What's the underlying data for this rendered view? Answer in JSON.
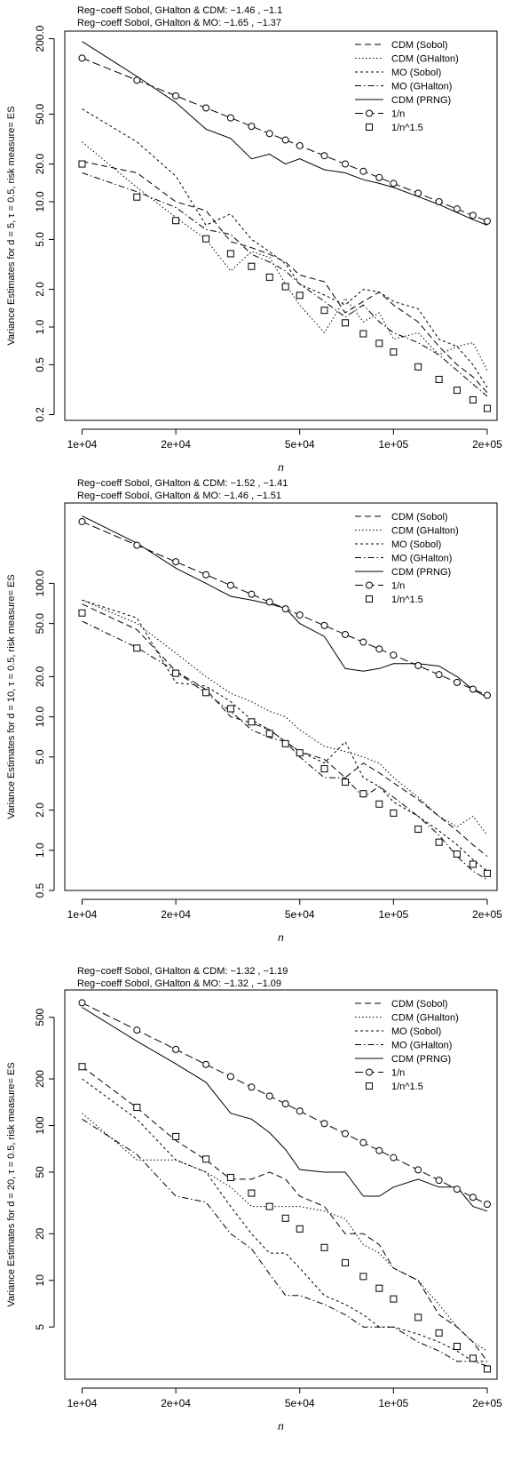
{
  "figure_xlabel": "n",
  "chart_data": [
    {
      "type": "line",
      "title": "Reg−coeff Sobol, GHalton & CDM: −1.46 , −1.1",
      "subtitle": "Reg−coeff Sobol, GHalton & MO: −1.65 , −1.37",
      "xlabel": "n",
      "ylabel": "Variance Estimates for d = 5, τ = 0.5, risk measure= ES",
      "xscale": "log",
      "yscale": "log",
      "xlim": [
        8800,
        215000
      ],
      "ylim": [
        0.18,
        230
      ],
      "xticks": [
        10000,
        20000,
        50000,
        100000,
        200000
      ],
      "xtick_labels": [
        "1e+04",
        "2e+04",
        "5e+04",
        "1e+05",
        "2e+05"
      ],
      "yticks": [
        0.2,
        0.5,
        1,
        2,
        5,
        10,
        20,
        50,
        200
      ],
      "ytick_labels": [
        "0.2",
        "0.5",
        "1.0",
        "2.0",
        "5.0",
        "10.0",
        "20.0",
        "50.0",
        "200.0"
      ],
      "legend_position": "top-right",
      "x": [
        10000,
        15000,
        20000,
        25000,
        30000,
        35000,
        40000,
        45000,
        50000,
        60000,
        70000,
        80000,
        90000,
        100000,
        120000,
        140000,
        160000,
        180000,
        200000
      ],
      "series": [
        {
          "name": "CDM (Sobol)",
          "values": [
            21,
            17,
            10,
            8.5,
            4.8,
            4.3,
            3.8,
            3.3,
            2.6,
            2.3,
            1.3,
            1.6,
            1.9,
            1.5,
            1.1,
            0.7,
            0.5,
            0.4,
            0.3
          ]
        },
        {
          "name": "CDM (GHalton)",
          "values": [
            30,
            13,
            7.5,
            5,
            2.8,
            4,
            3.6,
            2.2,
            1.5,
            0.9,
            1.7,
            1.1,
            1.3,
            0.8,
            0.9,
            0.6,
            0.7,
            0.75,
            0.45
          ]
        },
        {
          "name": "MO (Sobol)",
          "values": [
            55,
            30,
            16,
            6.5,
            8,
            5,
            4,
            3.2,
            2.2,
            1.8,
            1.5,
            2,
            1.9,
            1.6,
            1.4,
            0.8,
            0.7,
            0.5,
            0.33
          ]
        },
        {
          "name": "MO (GHalton)",
          "values": [
            17,
            12,
            9,
            6,
            5.5,
            3.8,
            3.3,
            2.8,
            2.2,
            1.6,
            1.2,
            1.5,
            1.1,
            0.9,
            0.75,
            0.6,
            0.45,
            0.35,
            0.28
          ]
        },
        {
          "name": "CDM (PRNG)",
          "values": [
            190,
            100,
            62,
            38,
            32,
            22,
            24,
            20,
            22,
            18,
            17,
            15,
            14,
            13,
            11,
            9.5,
            8.2,
            7.2,
            6.5
          ]
        },
        {
          "name": "1/n",
          "values": [
            140,
            93.3,
            70,
            56,
            46.7,
            40,
            35,
            31.1,
            28,
            23.3,
            20,
            17.5,
            15.6,
            14,
            11.7,
            10,
            8.75,
            7.78,
            7
          ]
        },
        {
          "name": "1/n^1.5",
          "values": [
            20,
            10.9,
            7.07,
            5.06,
            3.85,
            3.05,
            2.5,
            2.1,
            1.79,
            1.36,
            1.08,
            0.884,
            0.741,
            0.632,
            0.481,
            0.382,
            0.313,
            0.262,
            0.224
          ]
        }
      ]
    },
    {
      "type": "line",
      "title": "Reg−coeff Sobol, GHalton & CDM: −1.52 , −1.41",
      "subtitle": "Reg−coeff Sobol, GHalton & MO: −1.46 , −1.51",
      "xlabel": "n",
      "ylabel": "Variance Estimates for d = 10, τ = 0.5, risk measure= ES",
      "xscale": "log",
      "yscale": "log",
      "xlim": [
        8800,
        215000
      ],
      "ylim": [
        0.5,
        400
      ],
      "xticks": [
        10000,
        20000,
        50000,
        100000,
        200000
      ],
      "xtick_labels": [
        "1e+04",
        "2e+04",
        "5e+04",
        "1e+05",
        "2e+05"
      ],
      "yticks": [
        0.5,
        1,
        2,
        5,
        10,
        20,
        50,
        100
      ],
      "ytick_labels": [
        "0.5",
        "1.0",
        "2.0",
        "5.0",
        "10.0",
        "20.0",
        "50.0",
        "100.0"
      ],
      "legend_position": "top-right",
      "x": [
        10000,
        15000,
        20000,
        25000,
        30000,
        35000,
        40000,
        45000,
        50000,
        60000,
        70000,
        80000,
        90000,
        100000,
        120000,
        140000,
        160000,
        180000,
        200000
      ],
      "series": [
        {
          "name": "CDM (Sobol)",
          "values": [
            70,
            45,
            22,
            16,
            10,
            9,
            8,
            6.5,
            5.5,
            4.8,
            3.5,
            4.5,
            3.8,
            3.2,
            2.4,
            1.8,
            1.4,
            1.1,
            0.9
          ]
        },
        {
          "name": "CDM (GHalton)",
          "values": [
            75,
            50,
            30,
            20,
            15,
            13,
            11,
            10,
            8,
            6,
            5.5,
            5,
            4.5,
            3.5,
            2.5,
            1.8,
            1.5,
            1.8,
            1.3
          ]
        },
        {
          "name": "MO (Sobol)",
          "values": [
            75,
            55,
            18,
            17,
            13,
            9.5,
            8,
            6.5,
            5.5,
            4.5,
            6.5,
            3.5,
            3,
            2.3,
            1.8,
            1.4,
            1.1,
            0.85,
            0.7
          ]
        },
        {
          "name": "MO (GHalton)",
          "values": [
            52,
            33,
            22,
            15,
            11,
            8,
            7,
            6.5,
            5,
            3.5,
            3.5,
            2.5,
            3,
            2.5,
            1.8,
            1.3,
            0.9,
            0.7,
            0.6
          ]
        },
        {
          "name": "CDM (PRNG)",
          "values": [
            320,
            200,
            130,
            100,
            80,
            75,
            70,
            65,
            50,
            40,
            23,
            22,
            23,
            25,
            25,
            24,
            20,
            16,
            14
          ]
        },
        {
          "name": "1/n",
          "values": [
            290,
            193,
            145,
            116,
            96.7,
            82.9,
            72.5,
            64.4,
            58,
            48.3,
            41.4,
            36.3,
            32.2,
            29,
            24.2,
            20.7,
            18.1,
            16.1,
            14.5
          ]
        },
        {
          "name": "1/n^1.5",
          "values": [
            60,
            32.7,
            21.2,
            15.2,
            11.5,
            9.16,
            7.5,
            6.29,
            5.37,
            4.08,
            3.24,
            2.65,
            2.22,
            1.9,
            1.44,
            1.15,
            0.938,
            0.786,
            0.671
          ]
        }
      ]
    },
    {
      "type": "line",
      "title": "Reg−coeff Sobol, GHalton & CDM: −1.32 , −1.19",
      "subtitle": "Reg−coeff Sobol, GHalton & MO: −1.32 , −1.09",
      "xlabel": "n",
      "ylabel": "Variance Estimates for d = 20, τ = 0.5, risk measure= ES",
      "xscale": "log",
      "yscale": "log",
      "xlim": [
        8800,
        215000
      ],
      "ylim": [
        2.3,
        750
      ],
      "xticks": [
        10000,
        20000,
        50000,
        100000,
        200000
      ],
      "xtick_labels": [
        "1e+04",
        "2e+04",
        "5e+04",
        "1e+05",
        "2e+05"
      ],
      "yticks": [
        5,
        10,
        20,
        50,
        100,
        200,
        500
      ],
      "ytick_labels": [
        "5",
        "10",
        "20",
        "50",
        "100",
        "200",
        "500"
      ],
      "legend_position": "top-right",
      "x": [
        10000,
        15000,
        20000,
        25000,
        30000,
        35000,
        40000,
        45000,
        50000,
        60000,
        70000,
        80000,
        90000,
        100000,
        120000,
        140000,
        160000,
        180000,
        200000
      ],
      "series": [
        {
          "name": "CDM (Sobol)",
          "values": [
            240,
            130,
            80,
            60,
            45,
            45,
            50,
            45,
            35,
            30,
            20,
            20,
            17,
            12,
            10,
            6,
            5,
            4,
            3
          ]
        },
        {
          "name": "CDM (GHalton)",
          "values": [
            120,
            60,
            60,
            50,
            40,
            30,
            30,
            30,
            30,
            28,
            25,
            17,
            15,
            12,
            10,
            7,
            5,
            4,
            3.5
          ]
        },
        {
          "name": "MO (Sobol)",
          "values": [
            200,
            110,
            60,
            50,
            30,
            20,
            15,
            15,
            12,
            8,
            7,
            6,
            5,
            5,
            4.5,
            4,
            3.5,
            3,
            3
          ]
        },
        {
          "name": "MO (GHalton)",
          "values": [
            110,
            65,
            35,
            32,
            20,
            16,
            11,
            8,
            8,
            7,
            6,
            5,
            5,
            5,
            4,
            3.5,
            3,
            3,
            2.8
          ]
        },
        {
          "name": "CDM (PRNG)",
          "values": [
            580,
            350,
            250,
            190,
            120,
            110,
            90,
            70,
            52,
            50,
            50,
            35,
            35,
            40,
            45,
            40,
            40,
            30,
            28
          ]
        },
        {
          "name": "1/n",
          "values": [
            620,
            413,
            310,
            248,
            207,
            177,
            155,
            138,
            124,
            103,
            88.6,
            77.5,
            68.9,
            62,
            51.7,
            44.3,
            38.8,
            34.4,
            31
          ]
        },
        {
          "name": "1/n^1.5",
          "values": [
            240,
            131,
            84.9,
            60.7,
            46.2,
            36.6,
            30,
            25.2,
            21.5,
            16.3,
            13,
            10.6,
            8.89,
            7.59,
            5.77,
            4.58,
            3.75,
            3.14,
            2.68
          ]
        }
      ]
    }
  ],
  "series_styles": [
    {
      "dash": "7,4",
      "marker": "none"
    },
    {
      "dash": "1.5,2.5",
      "marker": "none"
    },
    {
      "dash": "3,3",
      "marker": "none"
    },
    {
      "dash": "7,3,1.5,3",
      "marker": "none"
    },
    {
      "dash": "",
      "marker": "none"
    },
    {
      "dash": "9,4",
      "marker": "circle"
    },
    {
      "dash": "none",
      "marker": "square"
    }
  ],
  "colors": {
    "line": "#000000",
    "background": "#ffffff"
  }
}
